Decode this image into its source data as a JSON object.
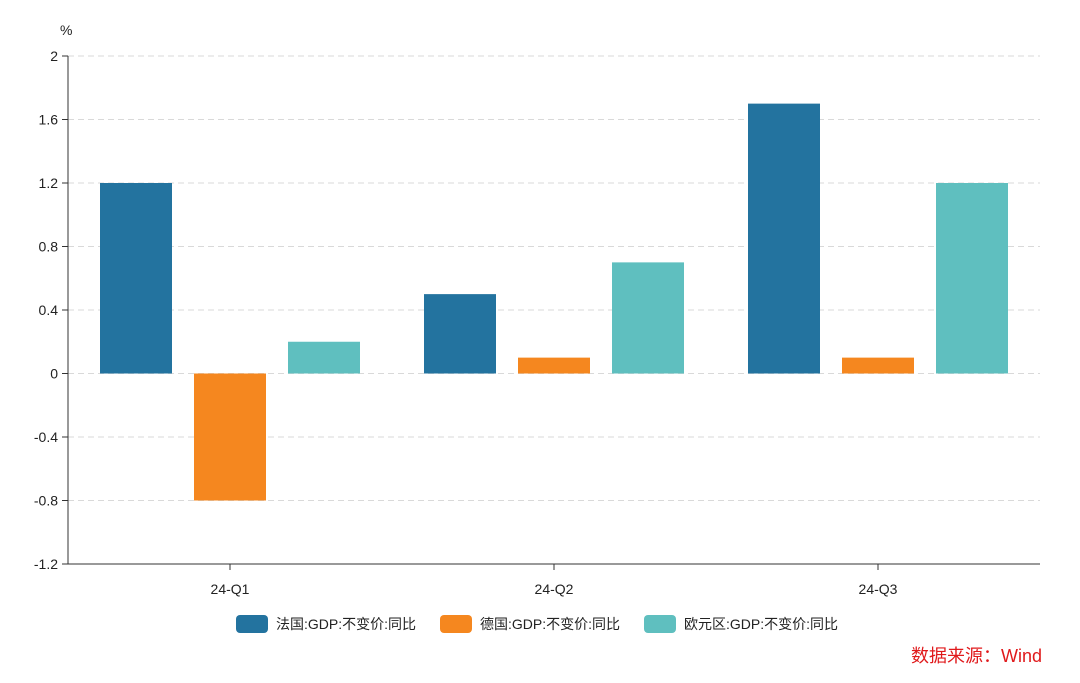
{
  "chart_data": {
    "type": "bar",
    "ylabel": "%",
    "ylim": [
      -1.2,
      2
    ],
    "yticks": [
      "2",
      "1.6",
      "1.2",
      "0.8",
      "0.4",
      "0",
      "-0.4",
      "-0.8",
      "-1.2"
    ],
    "ytick_values": [
      2,
      1.6,
      1.2,
      0.8,
      0.4,
      0,
      -0.4,
      -0.8,
      -1.2
    ],
    "categories": [
      "24-Q1",
      "24-Q2",
      "24-Q3"
    ],
    "series": [
      {
        "name": "法国:GDP:不变价:同比",
        "color": "#23739f",
        "values": [
          1.2,
          0.5,
          1.7
        ]
      },
      {
        "name": "德国:GDP:不变价:同比",
        "color": "#f5871f",
        "values": [
          -0.8,
          0.1,
          0.1
        ]
      },
      {
        "name": "欧元区:GDP:不变价:同比",
        "color": "#5fbfbf",
        "values": [
          0.2,
          0.7,
          1.2
        ]
      }
    ],
    "grid": true,
    "legend_position": "bottom",
    "source": "数据来源：Wind"
  }
}
